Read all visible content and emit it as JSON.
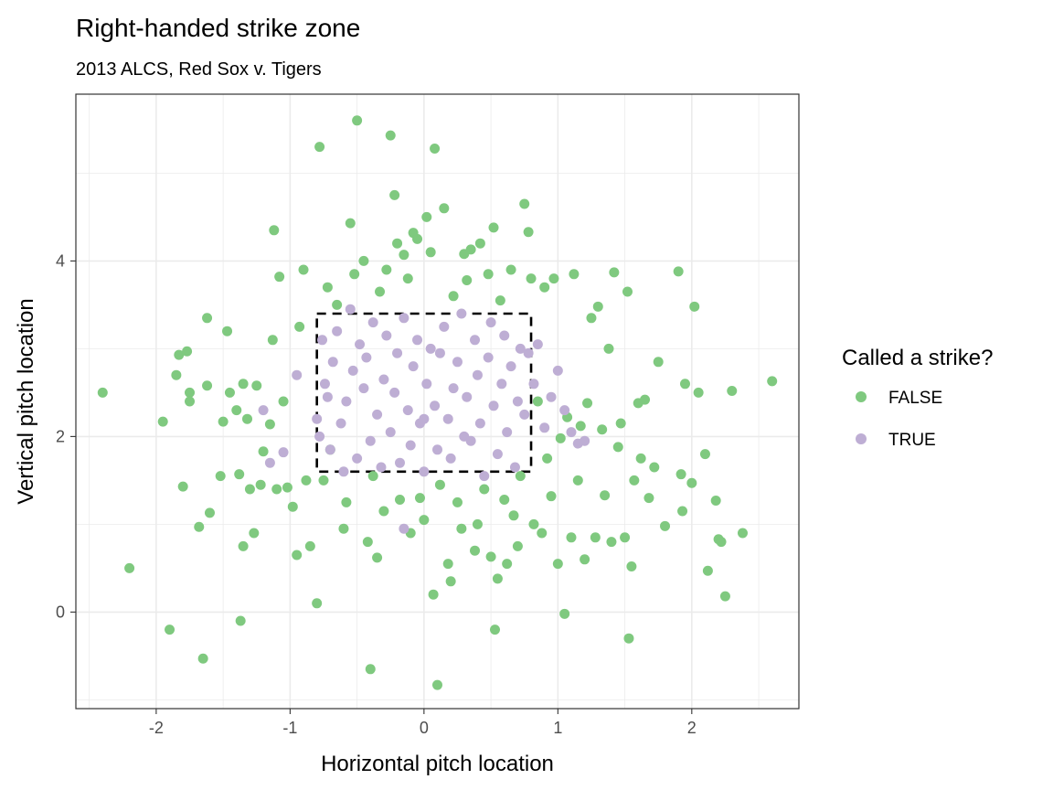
{
  "chart_data": {
    "type": "scatter",
    "title": "Right-handed strike zone",
    "subtitle": "2013 ALCS, Red Sox v. Tigers",
    "xlabel": "Horizontal pitch location",
    "ylabel": "Vertical pitch location",
    "xlim": [
      -2.6,
      2.8
    ],
    "ylim": [
      -1.1,
      5.9
    ],
    "x_ticks": [
      -2,
      -1,
      0,
      1,
      2
    ],
    "x_tick_labels": [
      "-2",
      "-1",
      "0",
      "1",
      "2"
    ],
    "y_ticks": [
      0,
      2,
      4
    ],
    "y_tick_labels": [
      "0",
      "2",
      "4"
    ],
    "grid": true,
    "legend": {
      "title": "Called a strike?",
      "position": "right",
      "entries": [
        "FALSE",
        "TRUE"
      ]
    },
    "strike_zone": {
      "x": [
        -0.8,
        0.8
      ],
      "y": [
        1.6,
        3.4
      ],
      "style": "dashed"
    },
    "series": [
      {
        "name": "FALSE",
        "color": "#7fc97f",
        "points": [
          [
            -2.4,
            2.5
          ],
          [
            -2.2,
            0.5
          ],
          [
            -1.95,
            2.17
          ],
          [
            -1.9,
            -0.2
          ],
          [
            -1.85,
            2.7
          ],
          [
            -1.83,
            2.93
          ],
          [
            -1.8,
            1.43
          ],
          [
            -1.77,
            2.97
          ],
          [
            -1.75,
            2.5
          ],
          [
            -1.75,
            2.4
          ],
          [
            -1.68,
            0.97
          ],
          [
            -1.65,
            -0.53
          ],
          [
            -1.62,
            2.58
          ],
          [
            -1.6,
            1.13
          ],
          [
            -1.62,
            3.35
          ],
          [
            -1.52,
            1.55
          ],
          [
            -1.5,
            2.17
          ],
          [
            -1.47,
            3.2
          ],
          [
            -1.45,
            2.5
          ],
          [
            -1.4,
            2.3
          ],
          [
            -1.38,
            1.57
          ],
          [
            -1.37,
            -0.1
          ],
          [
            -1.35,
            0.75
          ],
          [
            -1.35,
            2.6
          ],
          [
            -1.32,
            2.2
          ],
          [
            -1.3,
            1.4
          ],
          [
            -1.27,
            0.9
          ],
          [
            -1.25,
            2.58
          ],
          [
            -1.22,
            1.45
          ],
          [
            -1.2,
            1.83
          ],
          [
            -1.15,
            2.14
          ],
          [
            -1.13,
            3.1
          ],
          [
            -1.12,
            4.35
          ],
          [
            -1.1,
            1.4
          ],
          [
            -1.08,
            3.82
          ],
          [
            -1.05,
            2.4
          ],
          [
            -1.02,
            1.42
          ],
          [
            -0.98,
            1.2
          ],
          [
            -0.95,
            0.65
          ],
          [
            -0.93,
            3.25
          ],
          [
            -0.9,
            3.9
          ],
          [
            -0.88,
            1.5
          ],
          [
            -0.85,
            0.75
          ],
          [
            -0.8,
            0.1
          ],
          [
            -0.78,
            5.3
          ],
          [
            -0.75,
            1.5
          ],
          [
            -0.72,
            3.7
          ],
          [
            -0.7,
            1.85
          ],
          [
            -0.65,
            3.5
          ],
          [
            -0.6,
            0.95
          ],
          [
            -0.58,
            1.25
          ],
          [
            -0.55,
            4.43
          ],
          [
            -0.52,
            3.85
          ],
          [
            -0.5,
            5.6
          ],
          [
            -0.45,
            4.0
          ],
          [
            -0.42,
            0.8
          ],
          [
            -0.4,
            -0.65
          ],
          [
            -0.38,
            1.55
          ],
          [
            -0.35,
            0.62
          ],
          [
            -0.33,
            3.65
          ],
          [
            -0.3,
            1.15
          ],
          [
            -0.28,
            3.9
          ],
          [
            -0.25,
            5.43
          ],
          [
            -0.22,
            4.75
          ],
          [
            -0.2,
            4.2
          ],
          [
            -0.18,
            1.28
          ],
          [
            -0.15,
            4.07
          ],
          [
            -0.12,
            3.8
          ],
          [
            -0.1,
            0.9
          ],
          [
            -0.08,
            4.32
          ],
          [
            -0.05,
            4.25
          ],
          [
            -0.03,
            1.3
          ],
          [
            0.0,
            1.05
          ],
          [
            0.02,
            4.5
          ],
          [
            0.05,
            4.1
          ],
          [
            0.07,
            0.2
          ],
          [
            0.08,
            5.28
          ],
          [
            0.1,
            -0.83
          ],
          [
            0.12,
            1.45
          ],
          [
            0.15,
            4.6
          ],
          [
            0.18,
            0.55
          ],
          [
            0.2,
            0.35
          ],
          [
            0.22,
            3.6
          ],
          [
            0.25,
            1.25
          ],
          [
            0.28,
            0.95
          ],
          [
            0.3,
            4.08
          ],
          [
            0.32,
            3.78
          ],
          [
            0.35,
            4.13
          ],
          [
            0.38,
            0.7
          ],
          [
            0.4,
            1.0
          ],
          [
            0.42,
            4.2
          ],
          [
            0.45,
            1.4
          ],
          [
            0.48,
            3.85
          ],
          [
            0.5,
            0.63
          ],
          [
            0.52,
            4.38
          ],
          [
            0.53,
            -0.2
          ],
          [
            0.55,
            0.38
          ],
          [
            0.57,
            3.55
          ],
          [
            0.6,
            1.28
          ],
          [
            0.62,
            0.55
          ],
          [
            0.65,
            3.9
          ],
          [
            0.67,
            1.1
          ],
          [
            0.7,
            0.75
          ],
          [
            0.72,
            1.55
          ],
          [
            0.75,
            4.65
          ],
          [
            0.78,
            4.33
          ],
          [
            0.8,
            3.8
          ],
          [
            0.82,
            1.0
          ],
          [
            0.85,
            2.4
          ],
          [
            0.88,
            0.9
          ],
          [
            0.9,
            3.7
          ],
          [
            0.92,
            1.75
          ],
          [
            0.95,
            1.32
          ],
          [
            0.97,
            3.8
          ],
          [
            1.0,
            0.55
          ],
          [
            1.02,
            1.98
          ],
          [
            1.05,
            -0.02
          ],
          [
            1.07,
            2.22
          ],
          [
            1.1,
            0.85
          ],
          [
            1.12,
            3.85
          ],
          [
            1.15,
            1.5
          ],
          [
            1.17,
            2.12
          ],
          [
            1.2,
            0.6
          ],
          [
            1.22,
            2.38
          ],
          [
            1.25,
            3.35
          ],
          [
            1.28,
            0.85
          ],
          [
            1.3,
            3.48
          ],
          [
            1.33,
            2.08
          ],
          [
            1.35,
            1.33
          ],
          [
            1.38,
            3.0
          ],
          [
            1.4,
            0.8
          ],
          [
            1.42,
            3.87
          ],
          [
            1.45,
            1.88
          ],
          [
            1.47,
            2.15
          ],
          [
            1.5,
            0.85
          ],
          [
            1.52,
            3.65
          ],
          [
            1.53,
            -0.3
          ],
          [
            1.55,
            0.52
          ],
          [
            1.57,
            1.5
          ],
          [
            1.6,
            2.38
          ],
          [
            1.62,
            1.75
          ],
          [
            1.65,
            2.42
          ],
          [
            1.68,
            1.3
          ],
          [
            1.72,
            1.65
          ],
          [
            1.75,
            2.85
          ],
          [
            1.8,
            0.98
          ],
          [
            1.9,
            3.88
          ],
          [
            1.92,
            1.57
          ],
          [
            1.93,
            1.15
          ],
          [
            1.95,
            2.6
          ],
          [
            2.0,
            1.47
          ],
          [
            2.02,
            3.48
          ],
          [
            2.05,
            2.5
          ],
          [
            2.1,
            1.8
          ],
          [
            2.12,
            0.47
          ],
          [
            2.18,
            1.27
          ],
          [
            2.2,
            0.83
          ],
          [
            2.22,
            0.8
          ],
          [
            2.25,
            0.18
          ],
          [
            2.3,
            2.52
          ],
          [
            2.38,
            0.9
          ],
          [
            2.6,
            2.63
          ]
        ]
      },
      {
        "name": "TRUE",
        "color": "#beaed4",
        "points": [
          [
            -1.2,
            2.3
          ],
          [
            -1.15,
            1.7
          ],
          [
            -1.05,
            1.82
          ],
          [
            -0.95,
            2.7
          ],
          [
            -0.8,
            2.2
          ],
          [
            -0.78,
            2.0
          ],
          [
            -0.76,
            3.1
          ],
          [
            -0.74,
            2.6
          ],
          [
            -0.72,
            2.45
          ],
          [
            -0.7,
            1.85
          ],
          [
            -0.68,
            2.85
          ],
          [
            -0.65,
            3.2
          ],
          [
            -0.62,
            2.15
          ],
          [
            -0.6,
            1.6
          ],
          [
            -0.58,
            2.4
          ],
          [
            -0.55,
            3.45
          ],
          [
            -0.53,
            2.75
          ],
          [
            -0.5,
            1.75
          ],
          [
            -0.48,
            3.05
          ],
          [
            -0.45,
            2.55
          ],
          [
            -0.43,
            2.9
          ],
          [
            -0.4,
            1.95
          ],
          [
            -0.38,
            3.3
          ],
          [
            -0.35,
            2.25
          ],
          [
            -0.32,
            1.65
          ],
          [
            -0.3,
            2.65
          ],
          [
            -0.28,
            3.15
          ],
          [
            -0.25,
            2.05
          ],
          [
            -0.22,
            2.5
          ],
          [
            -0.2,
            2.95
          ],
          [
            -0.18,
            1.7
          ],
          [
            -0.15,
            3.35
          ],
          [
            -0.12,
            2.3
          ],
          [
            -0.1,
            1.9
          ],
          [
            -0.08,
            2.8
          ],
          [
            -0.05,
            3.1
          ],
          [
            -0.03,
            2.15
          ],
          [
            0.0,
            1.6
          ],
          [
            0.02,
            2.6
          ],
          [
            0.05,
            3.0
          ],
          [
            0.08,
            2.35
          ],
          [
            0.1,
            1.85
          ],
          [
            0.12,
            2.95
          ],
          [
            0.15,
            3.25
          ],
          [
            0.18,
            2.2
          ],
          [
            0.2,
            1.75
          ],
          [
            0.22,
            2.55
          ],
          [
            0.25,
            2.85
          ],
          [
            0.28,
            3.4
          ],
          [
            0.3,
            2.0
          ],
          [
            0.32,
            2.45
          ],
          [
            0.35,
            1.95
          ],
          [
            0.38,
            3.1
          ],
          [
            0.4,
            2.7
          ],
          [
            0.42,
            2.15
          ],
          [
            0.45,
            1.55
          ],
          [
            0.48,
            2.9
          ],
          [
            0.5,
            3.3
          ],
          [
            0.52,
            2.35
          ],
          [
            0.55,
            1.8
          ],
          [
            0.58,
            2.6
          ],
          [
            0.6,
            3.15
          ],
          [
            0.62,
            2.05
          ],
          [
            0.65,
            2.8
          ],
          [
            0.68,
            1.65
          ],
          [
            0.7,
            2.4
          ],
          [
            0.72,
            3.0
          ],
          [
            0.75,
            2.25
          ],
          [
            0.78,
            2.95
          ],
          [
            0.82,
            2.6
          ],
          [
            0.85,
            3.05
          ],
          [
            0.9,
            2.1
          ],
          [
            0.95,
            2.45
          ],
          [
            1.0,
            2.75
          ],
          [
            1.05,
            2.3
          ],
          [
            1.1,
            2.05
          ],
          [
            1.15,
            1.92
          ],
          [
            1.2,
            1.95
          ],
          [
            -0.15,
            0.95
          ],
          [
            0.0,
            2.2
          ]
        ]
      }
    ]
  }
}
